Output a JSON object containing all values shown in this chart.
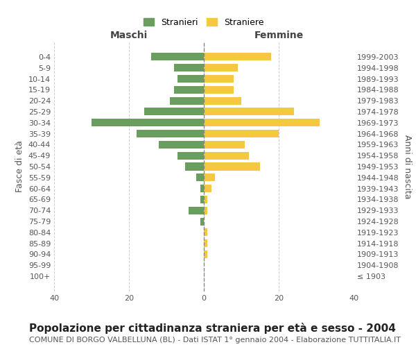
{
  "age_groups": [
    "100+",
    "95-99",
    "90-94",
    "85-89",
    "80-84",
    "75-79",
    "70-74",
    "65-69",
    "60-64",
    "55-59",
    "50-54",
    "45-49",
    "40-44",
    "35-39",
    "30-34",
    "25-29",
    "20-24",
    "15-19",
    "10-14",
    "5-9",
    "0-4"
  ],
  "birth_years": [
    "≤ 1903",
    "1904-1908",
    "1909-1913",
    "1914-1918",
    "1919-1923",
    "1924-1928",
    "1929-1933",
    "1934-1938",
    "1939-1943",
    "1944-1948",
    "1949-1953",
    "1954-1958",
    "1959-1963",
    "1964-1968",
    "1969-1973",
    "1974-1978",
    "1979-1983",
    "1984-1988",
    "1989-1993",
    "1994-1998",
    "1999-2003"
  ],
  "maschi": [
    0,
    0,
    0,
    0,
    0,
    1,
    4,
    1,
    1,
    2,
    5,
    7,
    12,
    18,
    30,
    16,
    9,
    8,
    7,
    8,
    14
  ],
  "femmine": [
    0,
    0,
    1,
    1,
    1,
    0,
    1,
    1,
    2,
    3,
    15,
    12,
    11,
    20,
    31,
    24,
    10,
    8,
    8,
    9,
    18
  ],
  "maschi_color": "#6a9e5e",
  "femmine_color": "#f5c842",
  "background_color": "#ffffff",
  "grid_color": "#cccccc",
  "title": "Popolazione per cittadinanza straniera per età e sesso - 2004",
  "subtitle": "COMUNE DI BORGO VALBELLUNA (BL) - Dati ISTAT 1° gennaio 2004 - Elaborazione TUTTITALIA.IT",
  "xlabel_left": "Maschi",
  "xlabel_right": "Femmine",
  "ylabel_left": "Fasce di età",
  "ylabel_right": "Anni di nascita",
  "legend_maschi": "Stranieri",
  "legend_femmine": "Straniere",
  "xlim": 40,
  "title_fontsize": 11,
  "subtitle_fontsize": 8,
  "label_fontsize": 9,
  "tick_fontsize": 8
}
